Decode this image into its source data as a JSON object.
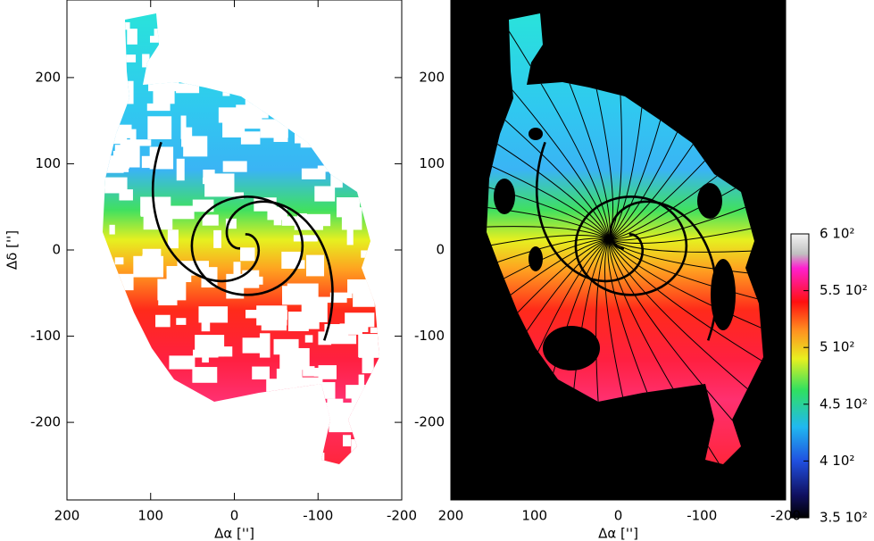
{
  "chart_data": [
    {
      "type": "image",
      "xlabel": "Δα ['']",
      "ylabel": "Δδ ['']",
      "xlim": [
        200,
        -200
      ],
      "ylim": [
        -290,
        290
      ],
      "xticks": [
        200,
        100,
        0,
        -100,
        -200
      ],
      "yticks": [
        200,
        100,
        0,
        -100,
        -200
      ],
      "background": "#ffffff"
    },
    {
      "type": "image",
      "xlabel": "Δα ['']",
      "xlim": [
        200,
        -200
      ],
      "ylim": [
        -290,
        290
      ],
      "xticks": [
        200,
        100,
        0,
        -100,
        -200
      ],
      "yticks": [
        200,
        100,
        0,
        -100,
        -200
      ],
      "background": "#000000"
    }
  ],
  "colorbar": {
    "lim": [
      350,
      600
    ],
    "ticks": [
      {
        "value": 600,
        "label": "6 10²"
      },
      {
        "value": 550,
        "label": "5.5 10²"
      },
      {
        "value": 500,
        "label": "5 10²"
      },
      {
        "value": 450,
        "label": "4.5 10²"
      },
      {
        "value": 400,
        "label": "4 10²"
      },
      {
        "value": 350,
        "label": "3.5 10²"
      }
    ]
  }
}
